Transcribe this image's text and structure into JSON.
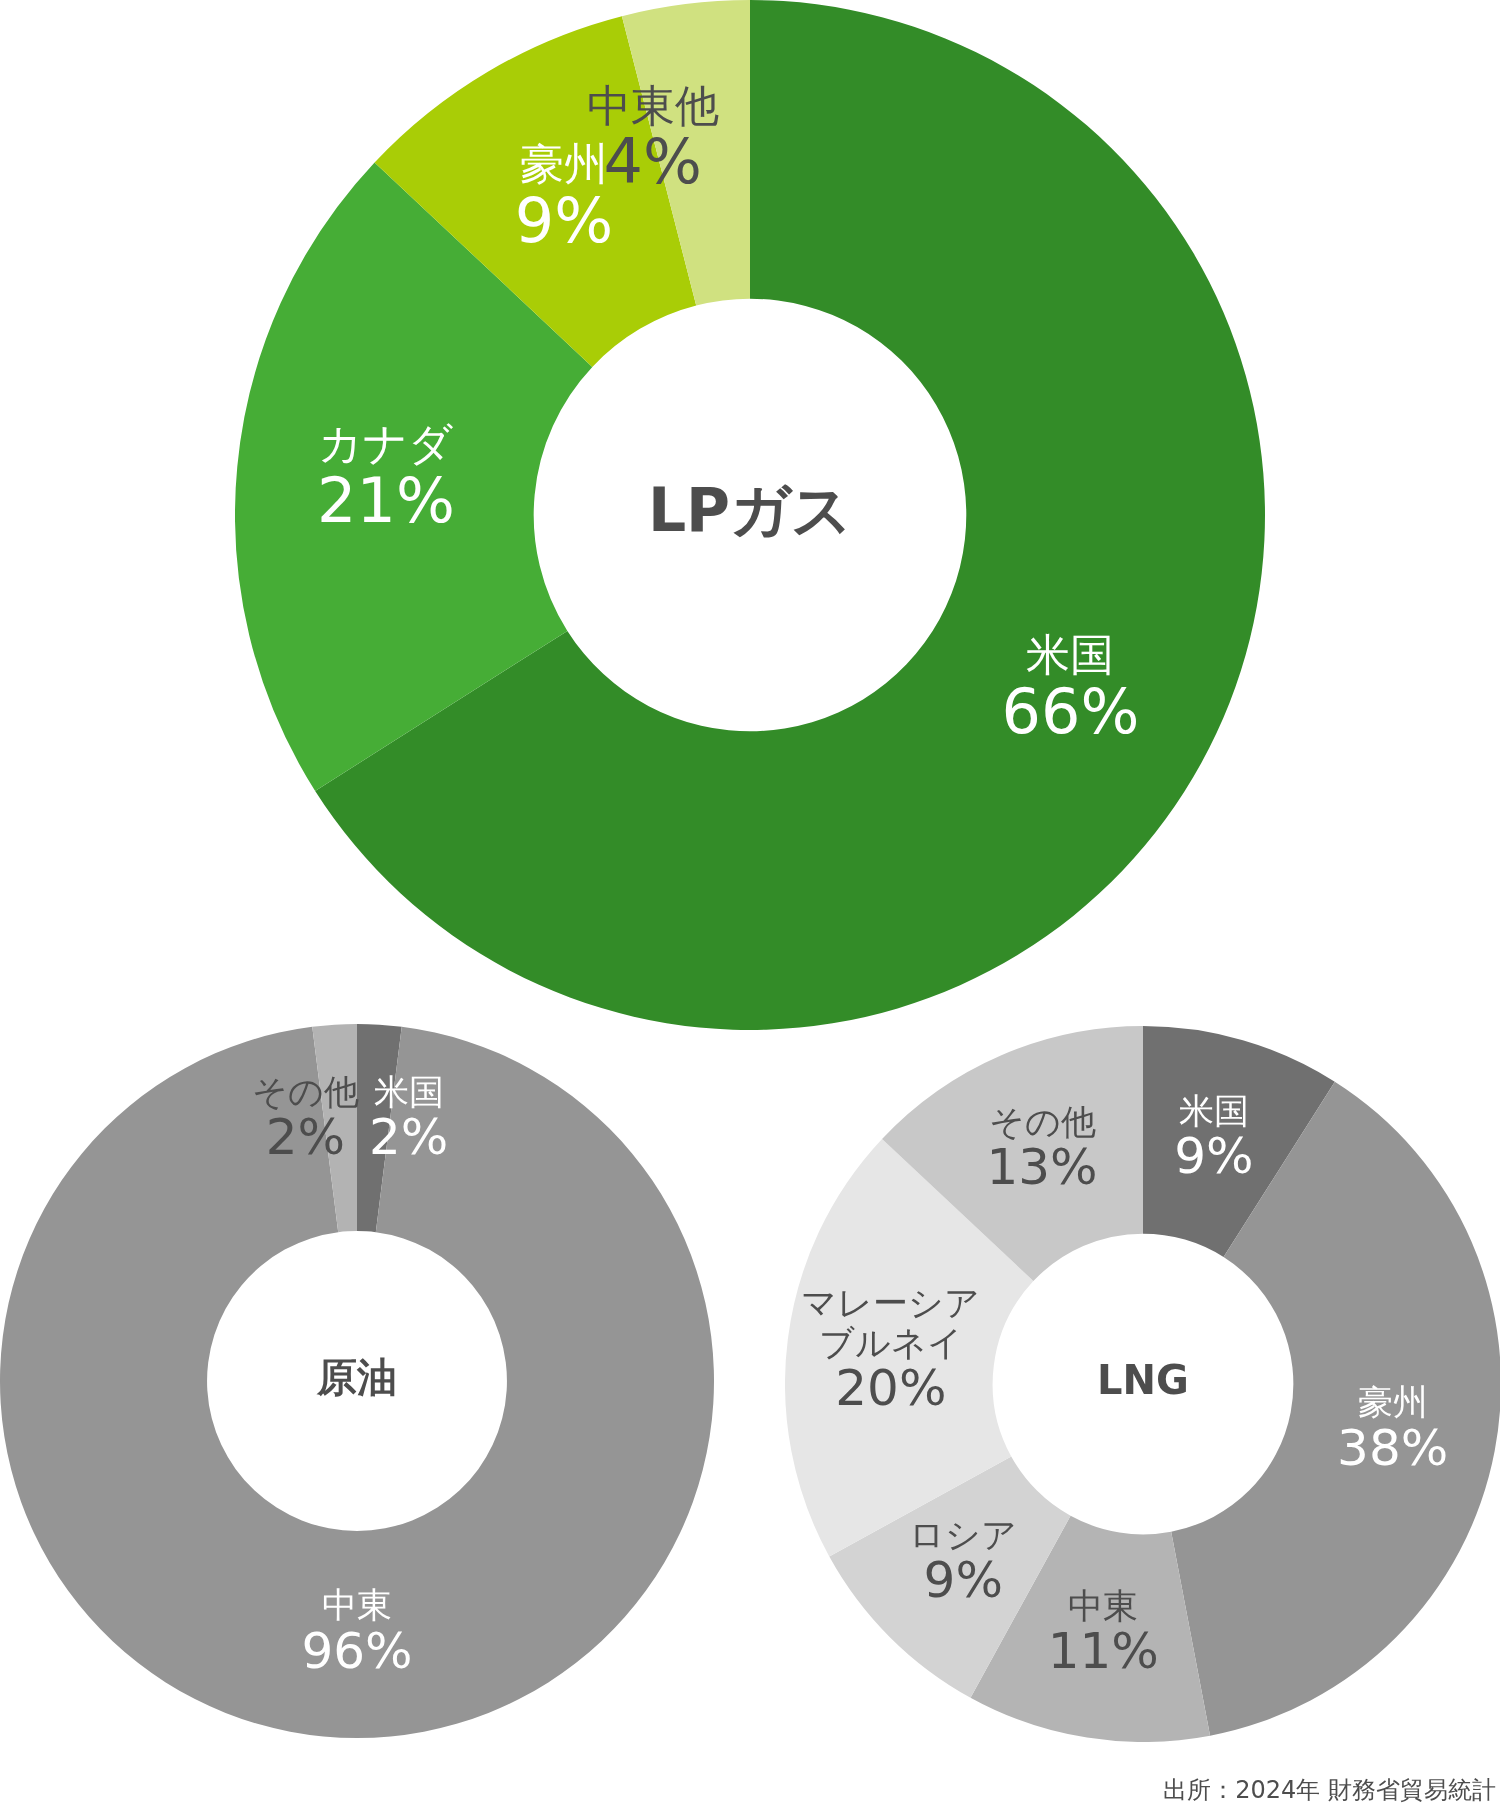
{
  "chart_data": [
    {
      "type": "donut",
      "title": "LPガス",
      "categories": [
        "米国",
        "カナダ",
        "豪州",
        "中東他"
      ],
      "values": [
        66,
        21,
        9,
        4
      ],
      "value_labels": [
        "66%",
        "21%",
        "9%",
        "4%"
      ],
      "colors": [
        "#338c28",
        "#46ad36",
        "#a9cd06",
        "#d0e180"
      ],
      "legend": false
    },
    {
      "type": "donut",
      "title": "原油",
      "categories": [
        "米国",
        "中東",
        "その他"
      ],
      "values": [
        2,
        96,
        2
      ],
      "value_labels": [
        "2%",
        "96%",
        "2%"
      ],
      "colors": [
        "#707070",
        "#959595",
        "#b3b3b3"
      ],
      "legend": false
    },
    {
      "type": "donut",
      "title": "LNG",
      "categories": [
        "米国",
        "豪州",
        "中東",
        "ロシア",
        "マレーシアブルネイ",
        "その他"
      ],
      "values": [
        9,
        38,
        11,
        9,
        20,
        13
      ],
      "value_labels": [
        "9%",
        "38%",
        "11%",
        "9%",
        "20%",
        "13%"
      ],
      "colors": [
        "#707070",
        "#959595",
        "#b4b4b4",
        "#d3d3d3",
        "#e6e6e6",
        "#c8c8c8"
      ],
      "legend": false,
      "annotations": [
        "出所：2024年 財務省貿易統計"
      ]
    }
  ]
}
